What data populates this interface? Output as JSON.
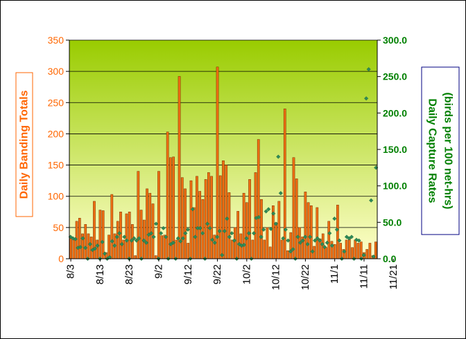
{
  "colors": {
    "background": "#ffffff",
    "plot_top": "#99cc00",
    "plot_bottom": "#ffffcc",
    "bar": "#ee6e12",
    "bar_edge": "#7a2f00",
    "dot": "#2e8b57",
    "left_axis_text": "#ff6600",
    "right_axis_text": "#008000"
  },
  "chart_data": {
    "type": "bar+scatter",
    "title": "",
    "ylabel_left": "Daily Banding Totals",
    "ylabel_right": "Daily Capture Rates (birds per 100 net-hrs)",
    "ylabel_right_lines": [
      "Daily Capture Rates",
      "(birds per 100 net-hrs)"
    ],
    "ylim_left": [
      0,
      350
    ],
    "ylim_right": [
      0,
      300
    ],
    "left_ticks": [
      "0",
      "50",
      "100",
      "150",
      "200",
      "250",
      "300",
      "350"
    ],
    "right_ticks": [
      "0.0",
      "50.0",
      "100.0",
      "150.0",
      "200.0",
      "250.0",
      "300.0"
    ],
    "grid": "horizontal",
    "x_tick_labels": [
      "8/3",
      "8/13",
      "8/23",
      "9/2",
      "9/12",
      "9/22",
      "10/2",
      "10/12",
      "10/22",
      "11/1",
      "11/11",
      "11/21"
    ],
    "series": [
      {
        "name": "",
        "kind": "bar",
        "axis": "left",
        "values": [
          35,
          30,
          60,
          65,
          40,
          55,
          40,
          35,
          92,
          30,
          78,
          77,
          10,
          38,
          103,
          40,
          60,
          75,
          30,
          72,
          75,
          55,
          5,
          140,
          78,
          62,
          112,
          105,
          88,
          5,
          140,
          37,
          38,
          203,
          162,
          163,
          30,
          292,
          130,
          112,
          25,
          125,
          82,
          132,
          108,
          95,
          127,
          138,
          132,
          38,
          307,
          133,
          157,
          150,
          106,
          30,
          50,
          76,
          40,
          105,
          90,
          127,
          30,
          138,
          191,
          95,
          30,
          50,
          19,
          85,
          58,
          92,
          30,
          240,
          13,
          42,
          162,
          128,
          50,
          35,
          107,
          90,
          85,
          20,
          82,
          32,
          40,
          18,
          60,
          28,
          23,
          86,
          25,
          15,
          30,
          32,
          18,
          30,
          25,
          27,
          10,
          15,
          25,
          5,
          27
        ]
      },
      {
        "name": "",
        "kind": "scatter",
        "axis": "right",
        "values": [
          30,
          28,
          27,
          15,
          16,
          28,
          15,
          0,
          20,
          12,
          14,
          18,
          0,
          23,
          7,
          0,
          2,
          24,
          18,
          30,
          35,
          20,
          30,
          25,
          0,
          25,
          28,
          25,
          28,
          0,
          25,
          22,
          33,
          35,
          30,
          48,
          0,
          35,
          42,
          30,
          0,
          20,
          22,
          0,
          28,
          24,
          28,
          35,
          40,
          0,
          68,
          30,
          42,
          42,
          35,
          0,
          48,
          42,
          26,
          22,
          30,
          38,
          5,
          38,
          55,
          30,
          35,
          25,
          0,
          20,
          18,
          19,
          28,
          35,
          0,
          35,
          56,
          57,
          30,
          40,
          65,
          68,
          41,
          62,
          48,
          140,
          90,
          28,
          40,
          25,
          10,
          13,
          0,
          30,
          22,
          25,
          30,
          20,
          30,
          10,
          25,
          28,
          25,
          20,
          16,
          22,
          35,
          18,
          55,
          40,
          25,
          0,
          10,
          30,
          28,
          30,
          0,
          26,
          25,
          0,
          5,
          220,
          260,
          80,
          3,
          125
        ]
      }
    ]
  }
}
